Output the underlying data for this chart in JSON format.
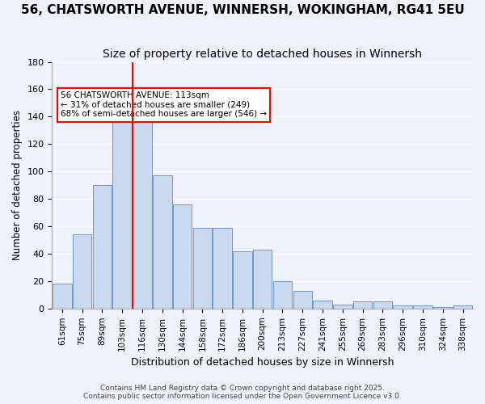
{
  "title": "56, CHATSWORTH AVENUE, WINNERSH, WOKINGHAM, RG41 5EU",
  "subtitle": "Size of property relative to detached houses in Winnersh",
  "xlabel": "Distribution of detached houses by size in Winnersh",
  "ylabel": "Number of detached properties",
  "bar_labels": [
    "61sqm",
    "75sqm",
    "89sqm",
    "103sqm",
    "116sqm",
    "130sqm",
    "144sqm",
    "158sqm",
    "172sqm",
    "186sqm",
    "200sqm",
    "213sqm",
    "227sqm",
    "241sqm",
    "255sqm",
    "269sqm",
    "283sqm",
    "296sqm",
    "310sqm",
    "324sqm",
    "338sqm"
  ],
  "bar_values": [
    18,
    54,
    90,
    136,
    144,
    97,
    76,
    59,
    59,
    42,
    43,
    20,
    13,
    6,
    3,
    5,
    5,
    2,
    2,
    1,
    2
  ],
  "bar_color": "#c9d9f0",
  "bar_edge_color": "#7096c8",
  "vline_x": 4.0,
  "vline_color": "red",
  "annotation_text": "56 CHATSWORTH AVENUE: 113sqm\n← 31% of detached houses are smaller (249)\n68% of semi-detached houses are larger (546) →",
  "annotation_box_color": "white",
  "annotation_box_edge": "red",
  "ylim": [
    0,
    180
  ],
  "yticks": [
    0,
    20,
    40,
    60,
    80,
    100,
    120,
    140,
    160,
    180
  ],
  "footer1": "Contains HM Land Registry data © Crown copyright and database right 2025.",
  "footer2": "Contains public sector information licensed under the Open Government Licence v3.0.",
  "bg_color": "#eef2fa",
  "plot_bg_color": "#eef2fa",
  "grid_color": "white",
  "title_fontsize": 11,
  "subtitle_fontsize": 10
}
